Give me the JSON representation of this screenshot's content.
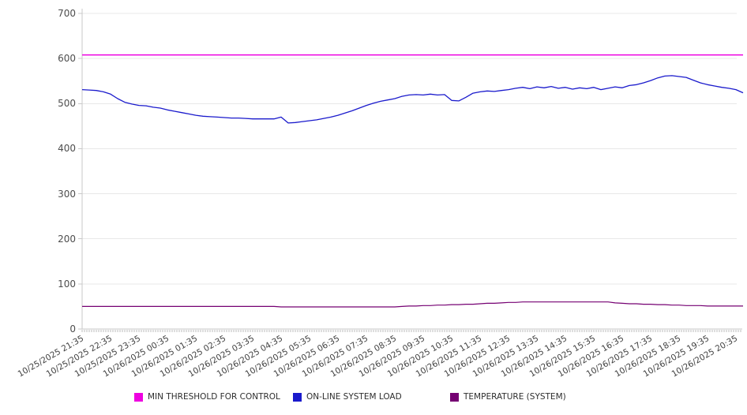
{
  "chart_data": {
    "type": "line",
    "title": "",
    "xlabel": "",
    "ylabel": "",
    "ylim": [
      0,
      700
    ],
    "y_tick_labels": [
      "0",
      "100",
      "200",
      "300",
      "400",
      "500",
      "600",
      "700"
    ],
    "y_tick_values": [
      0,
      100,
      200,
      300,
      400,
      500,
      600,
      700
    ],
    "grid": "horizontal",
    "legend_position": "bottom",
    "x_minor_tick_interval_minutes": 5,
    "sample_interval_minutes": 15,
    "x_tick_labels": [
      "10/25/2025 21:35",
      "10/25/2025 22:35",
      "10/25/2025 23:35",
      "10/26/2025 00:35",
      "10/26/2025 01:35",
      "10/26/2025 02:35",
      "10/26/2025 03:35",
      "10/26/2025 04:35",
      "10/26/2025 05:35",
      "10/26/2025 06:35",
      "10/26/2025 07:35",
      "10/26/2025 08:35",
      "10/26/2025 09:35",
      "10/26/2025 10:35",
      "10/26/2025 11:35",
      "10/26/2025 12:35",
      "10/26/2025 13:35",
      "10/26/2025 14:35",
      "10/26/2025 15:35",
      "10/26/2025 16:35",
      "10/26/2025 17:35",
      "10/26/2025 18:35",
      "10/26/2025 19:35",
      "10/26/2025 20:35"
    ],
    "series": [
      {
        "name": "MIN THRESHOLD FOR CONTROL",
        "color": "#ee00e0",
        "line_width": 1.5,
        "type": "constant",
        "value": 608
      },
      {
        "name": "ON-LINE SYSTEM LOAD",
        "color": "#1a1acc",
        "line_width": 1.3,
        "type": "points",
        "values": [
          531,
          530,
          529,
          526,
          521,
          511,
          503,
          499,
          496,
          495,
          492,
          490,
          486,
          483,
          480,
          477,
          474,
          472,
          471,
          470,
          469,
          468,
          468,
          467,
          466,
          466,
          466,
          466,
          470,
          457,
          458,
          460,
          462,
          464,
          467,
          470,
          474,
          479,
          484,
          490,
          496,
          501,
          505,
          508,
          511,
          516,
          519,
          520,
          519,
          521,
          519,
          520,
          507,
          506,
          514,
          523,
          526,
          528,
          527,
          529,
          531,
          534,
          536,
          533,
          537,
          535,
          538,
          534,
          536,
          532,
          535,
          533,
          536,
          531,
          534,
          537,
          535,
          540,
          542,
          546,
          551,
          557,
          561,
          562,
          560,
          558,
          552,
          546,
          542,
          539,
          536,
          534,
          531,
          524
        ]
      },
      {
        "name": "TEMPERATURE (SYSTEM)",
        "color": "#750072",
        "line_width": 1.2,
        "type": "points",
        "values": [
          50,
          50,
          50,
          50,
          50,
          50,
          50,
          50,
          50,
          50,
          50,
          50,
          50,
          50,
          50,
          50,
          50,
          50,
          50,
          50,
          50,
          50,
          50,
          50,
          50,
          50,
          50,
          50,
          49,
          49,
          49,
          49,
          49,
          49,
          49,
          49,
          49,
          49,
          49,
          49,
          49,
          49,
          49,
          49,
          49,
          50,
          51,
          51,
          52,
          52,
          53,
          53,
          54,
          54,
          55,
          55,
          56,
          57,
          57,
          58,
          59,
          59,
          60,
          60,
          60,
          60,
          60,
          60,
          60,
          60,
          60,
          60,
          60,
          60,
          60,
          58,
          57,
          56,
          56,
          55,
          55,
          54,
          54,
          53,
          53,
          52,
          52,
          52,
          51,
          51,
          51,
          51,
          51,
          51
        ]
      }
    ],
    "icons": {
      "legend_swatch": "filled-square-icon"
    },
    "colors": {
      "gridline": "#e8e8e8",
      "axis": "#c9c9c9",
      "minor_tick": "#bdbdbd",
      "tick_text": "#4d4d4d",
      "background": "#ffffff"
    }
  }
}
